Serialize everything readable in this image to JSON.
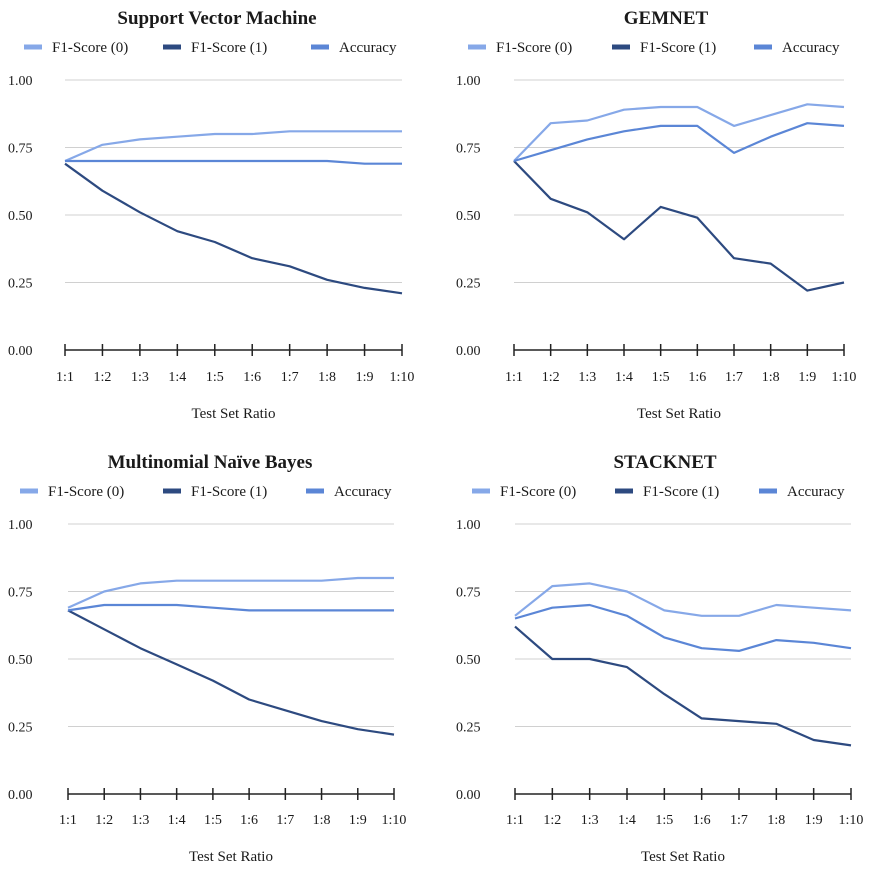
{
  "colors": {
    "f1_0": "#86a8e8",
    "f1_1": "#2d4a80",
    "accuracy": "#5b86d6",
    "grid": "#d0d0d0",
    "axis": "#222222"
  },
  "chart_data": [
    {
      "type": "line",
      "title": "Support Vector Machine",
      "xlabel": "Test Set Ratio",
      "ylabel": "",
      "categories": [
        "1:1",
        "1:2",
        "1:3",
        "1:4",
        "1:5",
        "1:6",
        "1:7",
        "1:8",
        "1:9",
        "1:10"
      ],
      "yticks": [
        "0.00",
        "0.25",
        "0.50",
        "0.75",
        "1.00"
      ],
      "ylim": [
        0,
        1
      ],
      "grid": true,
      "legend": "top",
      "series": [
        {
          "name": "F1-Score (0)",
          "values": [
            0.7,
            0.76,
            0.78,
            0.79,
            0.8,
            0.8,
            0.81,
            0.81,
            0.81,
            0.81
          ]
        },
        {
          "name": "F1-Score (1)",
          "values": [
            0.69,
            0.59,
            0.51,
            0.44,
            0.4,
            0.34,
            0.31,
            0.26,
            0.23,
            0.21
          ]
        },
        {
          "name": "Accuracy",
          "values": [
            0.7,
            0.7,
            0.7,
            0.7,
            0.7,
            0.7,
            0.7,
            0.7,
            0.69,
            0.69
          ]
        }
      ]
    },
    {
      "type": "line",
      "title": "GEMNET",
      "xlabel": "Test Set Ratio",
      "ylabel": "",
      "categories": [
        "1:1",
        "1:2",
        "1:3",
        "1:4",
        "1:5",
        "1:6",
        "1:7",
        "1:8",
        "1:9",
        "1:10"
      ],
      "yticks": [
        "0.00",
        "0.25",
        "0.50",
        "0.75",
        "1.00"
      ],
      "ylim": [
        0,
        1
      ],
      "grid": true,
      "legend": "top",
      "series": [
        {
          "name": "F1-Score (0)",
          "values": [
            0.7,
            0.84,
            0.85,
            0.89,
            0.9,
            0.9,
            0.83,
            0.87,
            0.91,
            0.9
          ]
        },
        {
          "name": "F1-Score (1)",
          "values": [
            0.7,
            0.56,
            0.51,
            0.41,
            0.53,
            0.49,
            0.34,
            0.32,
            0.22,
            0.25
          ]
        },
        {
          "name": "Accuracy",
          "values": [
            0.7,
            0.74,
            0.78,
            0.81,
            0.83,
            0.83,
            0.73,
            0.79,
            0.84,
            0.83
          ]
        }
      ]
    },
    {
      "type": "line",
      "title": "Multinomial Naïve Bayes",
      "xlabel": "Test Set Ratio",
      "ylabel": "",
      "categories": [
        "1:1",
        "1:2",
        "1:3",
        "1:4",
        "1:5",
        "1:6",
        "1:7",
        "1:8",
        "1:9",
        "1:10"
      ],
      "yticks": [
        "0.00",
        "0.25",
        "0.50",
        "0.75",
        "1.00"
      ],
      "ylim": [
        0,
        1
      ],
      "grid": true,
      "legend": "top",
      "series": [
        {
          "name": "F1-Score (0)",
          "values": [
            0.69,
            0.75,
            0.78,
            0.79,
            0.79,
            0.79,
            0.79,
            0.79,
            0.8,
            0.8
          ]
        },
        {
          "name": "F1-Score (1)",
          "values": [
            0.68,
            0.61,
            0.54,
            0.48,
            0.42,
            0.35,
            0.31,
            0.27,
            0.24,
            0.22
          ]
        },
        {
          "name": "Accuracy",
          "values": [
            0.68,
            0.7,
            0.7,
            0.7,
            0.69,
            0.68,
            0.68,
            0.68,
            0.68,
            0.68
          ]
        }
      ]
    },
    {
      "type": "line",
      "title": "STACKNET",
      "xlabel": "Test Set Ratio",
      "ylabel": "",
      "categories": [
        "1:1",
        "1:2",
        "1:3",
        "1:4",
        "1:5",
        "1:6",
        "1:7",
        "1:8",
        "1:9",
        "1:10"
      ],
      "yticks": [
        "0.00",
        "0.25",
        "0.50",
        "0.75",
        "1.00"
      ],
      "ylim": [
        0,
        1
      ],
      "grid": true,
      "legend": "top",
      "series": [
        {
          "name": "F1-Score (0)",
          "values": [
            0.66,
            0.77,
            0.78,
            0.75,
            0.68,
            0.66,
            0.66,
            0.7,
            0.69,
            0.68
          ]
        },
        {
          "name": "F1-Score (1)",
          "values": [
            0.62,
            0.5,
            0.5,
            0.47,
            0.37,
            0.28,
            0.27,
            0.26,
            0.2,
            0.18
          ]
        },
        {
          "name": "Accuracy",
          "values": [
            0.65,
            0.69,
            0.7,
            0.66,
            0.58,
            0.54,
            0.53,
            0.57,
            0.56,
            0.54
          ]
        }
      ]
    }
  ]
}
